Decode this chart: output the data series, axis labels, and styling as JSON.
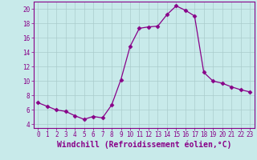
{
  "x": [
    0,
    1,
    2,
    3,
    4,
    5,
    6,
    7,
    8,
    9,
    10,
    11,
    12,
    13,
    14,
    15,
    16,
    17,
    18,
    19,
    20,
    21,
    22,
    23
  ],
  "y": [
    7.0,
    6.5,
    6.0,
    5.8,
    5.2,
    4.7,
    5.1,
    4.9,
    6.7,
    10.2,
    14.8,
    17.3,
    17.5,
    17.6,
    19.2,
    20.4,
    19.8,
    19.0,
    11.2,
    10.0,
    9.7,
    9.2,
    8.8,
    8.5
  ],
  "line_color": "#880088",
  "marker": "D",
  "marker_size": 2.5,
  "background_color": "#c8eaea",
  "grid_color": "#aacccc",
  "xlabel": "Windchill (Refroidissement éolien,°C)",
  "xlabel_fontsize": 7,
  "xlim": [
    -0.5,
    23.5
  ],
  "ylim": [
    3.5,
    21.0
  ],
  "yticks": [
    4,
    6,
    8,
    10,
    12,
    14,
    16,
    18,
    20
  ],
  "xticks": [
    0,
    1,
    2,
    3,
    4,
    5,
    6,
    7,
    8,
    9,
    10,
    11,
    12,
    13,
    14,
    15,
    16,
    17,
    18,
    19,
    20,
    21,
    22,
    23
  ],
  "tick_color": "#880088",
  "tick_fontsize": 5.5,
  "spine_color": "#880088"
}
